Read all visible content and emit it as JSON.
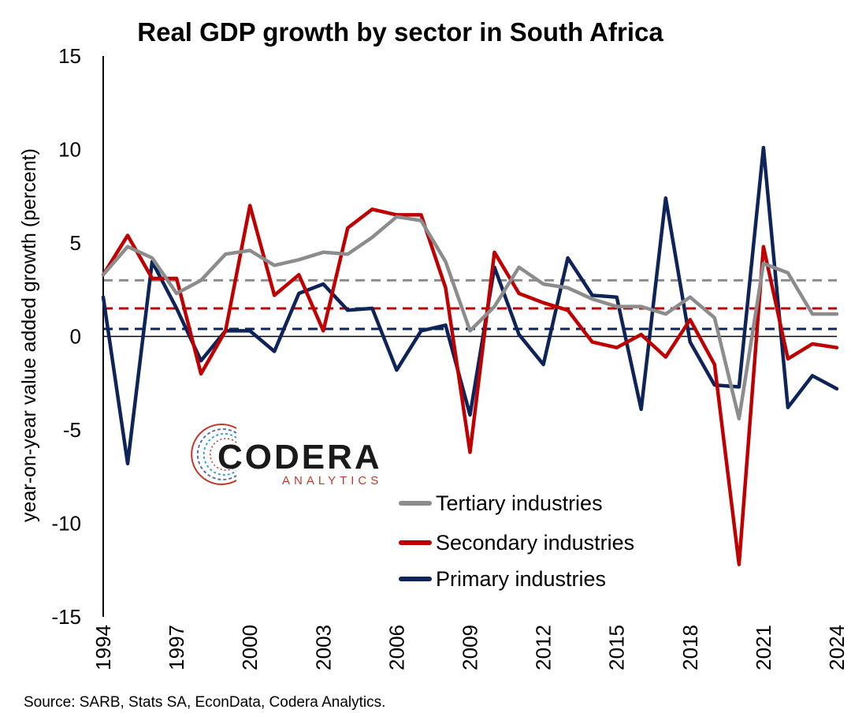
{
  "chart_data": {
    "type": "line",
    "title": "Real GDP growth by sector in South Africa",
    "ylabel": "year-on-year value added growth (percent)",
    "xlabel": "",
    "ylim": [
      -15,
      15
    ],
    "yticks": [
      -15,
      -10,
      -5,
      0,
      5,
      10,
      15
    ],
    "xlim": [
      1994,
      2024
    ],
    "xticks": [
      1994,
      1997,
      2000,
      2003,
      2006,
      2009,
      2012,
      2015,
      2018,
      2021,
      2024
    ],
    "legend_position": "lower-right",
    "x": [
      1994,
      1995,
      1996,
      1997,
      1998,
      1999,
      2000,
      2001,
      2002,
      2003,
      2004,
      2005,
      2006,
      2007,
      2008,
      2009,
      2010,
      2011,
      2012,
      2013,
      2014,
      2015,
      2016,
      2017,
      2018,
      2019,
      2020,
      2021,
      2022,
      2023,
      2024
    ],
    "series": [
      {
        "name": "Tertiary industries",
        "color": "#8c8c8c",
        "average": 3.0,
        "values": [
          3.3,
          4.8,
          4.2,
          2.3,
          3.0,
          4.4,
          4.6,
          3.8,
          4.1,
          4.5,
          4.4,
          5.3,
          6.4,
          6.2,
          4.0,
          0.3,
          1.6,
          3.7,
          2.8,
          2.6,
          2.0,
          1.6,
          1.6,
          1.2,
          2.1,
          1.0,
          -4.4,
          3.9,
          3.4,
          1.2,
          1.2
        ]
      },
      {
        "name": "Secondary industries",
        "color": "#c00000",
        "average": 1.5,
        "values": [
          3.3,
          5.4,
          3.1,
          3.1,
          -2.0,
          0.3,
          7.0,
          2.2,
          3.3,
          0.3,
          5.8,
          6.8,
          6.5,
          6.5,
          2.6,
          -6.2,
          4.5,
          2.3,
          1.8,
          1.4,
          -0.3,
          -0.6,
          0.1,
          -1.1,
          0.9,
          -1.5,
          -12.2,
          4.8,
          -1.2,
          -0.4,
          -0.6
        ]
      },
      {
        "name": "Primary industries",
        "color": "#0e2459",
        "average": 0.4,
        "values": [
          2.1,
          -6.8,
          4.0,
          1.5,
          -1.3,
          0.3,
          0.3,
          -0.8,
          2.3,
          2.8,
          1.4,
          1.5,
          -1.8,
          0.3,
          0.6,
          -4.2,
          3.7,
          0.1,
          -1.5,
          4.2,
          2.2,
          2.1,
          -3.9,
          7.4,
          -0.3,
          -2.6,
          -2.7,
          10.1,
          -3.8,
          -2.1,
          -2.8
        ]
      }
    ]
  },
  "source": "Source: SARB, Stats SA, EconData, Codera Analytics.",
  "logo": {
    "name": "CODERA",
    "sub": "ANALYTICS"
  }
}
